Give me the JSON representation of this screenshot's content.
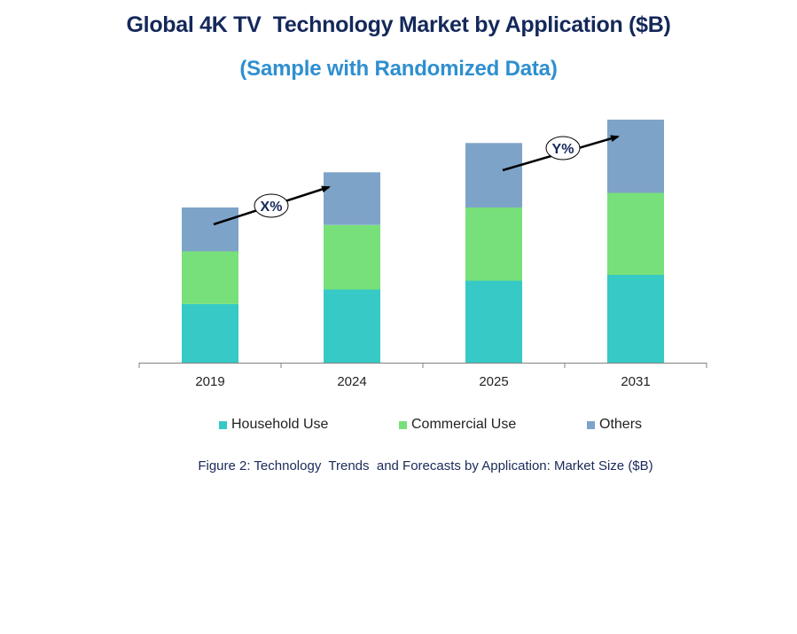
{
  "header": {
    "title": "Global 4K TV  Technology Market by Application ($B)",
    "subtitle": "(Sample with Randomized Data)"
  },
  "caption": "Figure 2: Technology  Trends  and Forecasts by Application: Market Size ($B)",
  "annotations": {
    "growth_1": "X%",
    "growth_2": "Y%"
  },
  "colors": {
    "household": "#36c9c6",
    "commercial": "#78e07a",
    "others": "#7ea3c9",
    "axis": "#808080",
    "arrow": "#000000"
  },
  "chart_data": {
    "type": "bar",
    "stacked": true,
    "categories": [
      "2019",
      "2024",
      "2025",
      "2031"
    ],
    "series": [
      {
        "name": "Household Use",
        "values": [
          2.0,
          2.5,
          2.8,
          3.0
        ]
      },
      {
        "name": "Commercial Use",
        "values": [
          1.8,
          2.2,
          2.5,
          2.8
        ]
      },
      {
        "name": "Others",
        "values": [
          1.5,
          1.8,
          2.2,
          2.5
        ]
      }
    ],
    "ylim": [
      0,
      8.6
    ],
    "grid": false,
    "y_axis_visible": false,
    "legend_position": "bottom"
  }
}
